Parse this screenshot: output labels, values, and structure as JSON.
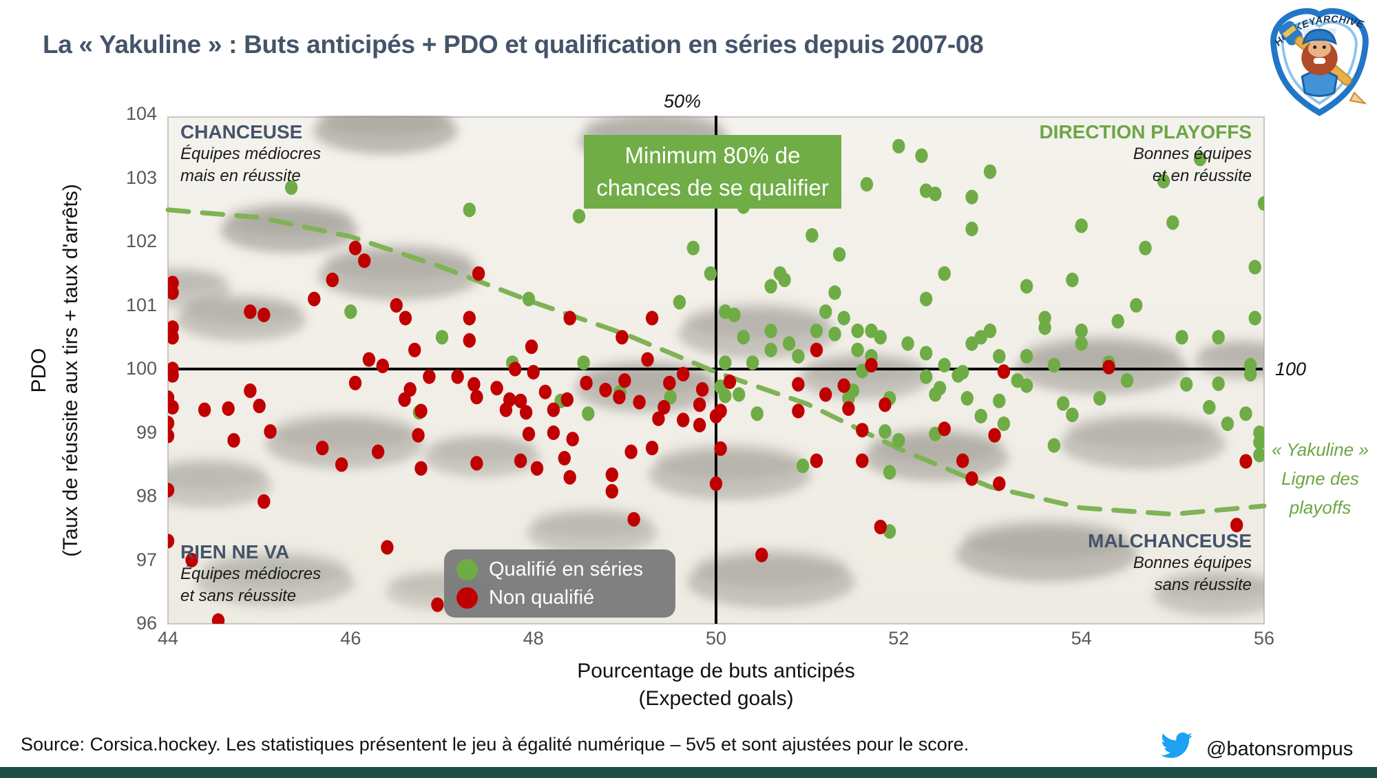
{
  "title": "La « Yakuline » : Buts anticipés + PDO et qualification en séries depuis 2007-08",
  "logo": {
    "text": "HOCKEYARCHIVES.INFO"
  },
  "chart_data": {
    "type": "scatter",
    "xlabel_line1": "Pourcentage de buts anticipés",
    "xlabel_line2": "(Expected goals)",
    "ylabel_line1": "PDO",
    "ylabel_line2": "(Taux de réussite aux tirs + taux d'arrêts)",
    "xlim": [
      44,
      56
    ],
    "ylim": [
      96,
      104
    ],
    "x_ticks": [
      44,
      46,
      48,
      50,
      52,
      54,
      56
    ],
    "y_ticks": [
      96,
      97,
      98,
      99,
      100,
      101,
      102,
      103,
      104
    ],
    "grid": false,
    "reference_lines": {
      "vertical_x": 50,
      "vertical_label": "50%",
      "horizontal_y": 100,
      "horizontal_label": "100"
    },
    "annotation_box": {
      "line1": "Minimum 80% de",
      "line2": "chances de se qualifier"
    },
    "quadrants": {
      "top_left": {
        "title": "CHANCEUSE",
        "line1": "Équipes médiocres",
        "line2": "mais en réussite"
      },
      "top_right": {
        "title": "DIRECTION PLAYOFFS",
        "line1": "Bonnes équipes",
        "line2": "et en réussite"
      },
      "bottom_left": {
        "title": "RIEN NE VA",
        "line1": "Équipes médiocres",
        "line2": "et sans réussite"
      },
      "bottom_right": {
        "title": "MALCHANCEUSE",
        "line1": "Bonnes équipes",
        "line2": "sans réussite"
      }
    },
    "legend": {
      "items": [
        {
          "label": "Qualifié en séries",
          "color": "#6FAC46"
        },
        {
          "label": "Non qualifié",
          "color": "#C00000"
        }
      ]
    },
    "yakuline": {
      "label_line1": "« Yakuline »",
      "label_line2": "Ligne des",
      "label_line3": "playoffs",
      "color": "#7FB356",
      "points": [
        [
          44,
          102.5
        ],
        [
          45,
          102.38
        ],
        [
          46,
          102.08
        ],
        [
          47,
          101.6
        ],
        [
          48,
          101.05
        ],
        [
          49,
          100.55
        ],
        [
          50,
          99.95
        ],
        [
          51,
          99.45
        ],
        [
          52,
          98.75
        ],
        [
          53,
          98.15
        ],
        [
          54,
          97.82
        ],
        [
          55,
          97.72
        ],
        [
          56,
          97.85
        ]
      ]
    },
    "series": [
      {
        "name": "Qualifié en séries",
        "color": "#6FAC46",
        "points": [
          [
            45.35,
            102.85
          ],
          [
            47.3,
            102.5
          ],
          [
            48.5,
            102.4
          ],
          [
            49.75,
            101.9
          ],
          [
            49.94,
            101.5
          ],
          [
            49.6,
            101.05
          ],
          [
            47.95,
            101.1
          ],
          [
            46.0,
            100.9
          ],
          [
            47.0,
            100.5
          ],
          [
            47.77,
            100.1
          ],
          [
            48.55,
            100.1
          ],
          [
            46.75,
            99.32
          ],
          [
            48.3,
            99.5
          ],
          [
            48.95,
            99.64
          ],
          [
            49.5,
            99.56
          ],
          [
            48.6,
            99.3
          ],
          [
            50.3,
            102.55
          ],
          [
            51.65,
            102.9
          ],
          [
            52.0,
            103.5
          ],
          [
            52.25,
            103.35
          ],
          [
            53.0,
            103.1
          ],
          [
            55.3,
            103.3
          ],
          [
            52.3,
            102.8
          ],
          [
            52.4,
            102.75
          ],
          [
            52.8,
            102.7
          ],
          [
            54.9,
            102.95
          ],
          [
            55.0,
            102.3
          ],
          [
            56.0,
            102.6
          ],
          [
            54.0,
            102.25
          ],
          [
            52.8,
            102.2
          ],
          [
            51.05,
            102.1
          ],
          [
            54.7,
            101.9
          ],
          [
            51.35,
            101.8
          ],
          [
            50.7,
            101.5
          ],
          [
            50.75,
            101.4
          ],
          [
            52.5,
            101.5
          ],
          [
            50.6,
            101.3
          ],
          [
            51.3,
            101.2
          ],
          [
            53.4,
            101.3
          ],
          [
            53.9,
            101.4
          ],
          [
            55.9,
            101.6
          ],
          [
            54.6,
            101.0
          ],
          [
            52.3,
            101.1
          ],
          [
            50.1,
            100.9
          ],
          [
            50.2,
            100.85
          ],
          [
            51.2,
            100.9
          ],
          [
            51.4,
            100.8
          ],
          [
            53.6,
            100.8
          ],
          [
            54.4,
            100.75
          ],
          [
            55.9,
            100.8
          ],
          [
            53.6,
            100.65
          ],
          [
            54.0,
            100.6
          ],
          [
            50.6,
            100.6
          ],
          [
            51.1,
            100.6
          ],
          [
            51.3,
            100.55
          ],
          [
            51.55,
            100.6
          ],
          [
            51.7,
            100.6
          ],
          [
            50.3,
            100.5
          ],
          [
            50.8,
            100.4
          ],
          [
            51.8,
            100.5
          ],
          [
            52.1,
            100.4
          ],
          [
            52.8,
            100.4
          ],
          [
            52.9,
            100.5
          ],
          [
            53.0,
            100.6
          ],
          [
            54.0,
            100.4
          ],
          [
            55.1,
            100.5
          ],
          [
            55.5,
            100.5
          ],
          [
            50.6,
            100.3
          ],
          [
            50.9,
            100.2
          ],
          [
            51.55,
            100.3
          ],
          [
            51.7,
            100.2
          ],
          [
            52.3,
            100.25
          ],
          [
            53.1,
            100.2
          ],
          [
            53.4,
            100.2
          ],
          [
            50.1,
            100.1
          ],
          [
            50.4,
            100.1
          ],
          [
            52.5,
            100.06
          ],
          [
            53.7,
            100.06
          ],
          [
            54.3,
            100.1
          ],
          [
            55.85,
            100.06
          ],
          [
            51.6,
            99.97
          ],
          [
            52.7,
            99.95
          ],
          [
            50.05,
            99.72
          ],
          [
            50.25,
            99.6
          ],
          [
            50.1,
            99.58
          ],
          [
            52.3,
            99.88
          ],
          [
            52.65,
            99.9
          ],
          [
            52.45,
            99.7
          ],
          [
            52.4,
            99.6
          ],
          [
            52.75,
            99.54
          ],
          [
            51.9,
            99.54
          ],
          [
            53.1,
            99.5
          ],
          [
            53.8,
            99.46
          ],
          [
            54.2,
            99.54
          ],
          [
            53.4,
            99.74
          ],
          [
            53.3,
            99.82
          ],
          [
            54.5,
            99.82
          ],
          [
            55.15,
            99.76
          ],
          [
            55.5,
            99.77
          ],
          [
            55.85,
            99.92
          ],
          [
            53.9,
            99.28
          ],
          [
            52.9,
            99.26
          ],
          [
            53.15,
            99.14
          ],
          [
            55.4,
            99.4
          ],
          [
            55.8,
            99.3
          ],
          [
            55.6,
            99.14
          ],
          [
            51.85,
            99.02
          ],
          [
            52.4,
            98.98
          ],
          [
            53.7,
            98.8
          ],
          [
            50.95,
            98.48
          ],
          [
            51.9,
            98.38
          ],
          [
            52.0,
            98.88
          ],
          [
            51.5,
            99.66
          ],
          [
            51.45,
            99.54
          ],
          [
            50.45,
            99.3
          ],
          [
            55.95,
            99.0
          ],
          [
            55.95,
            98.85
          ],
          [
            55.95,
            98.65
          ],
          [
            51.9,
            97.45
          ]
        ]
      },
      {
        "name": "Non qualifié",
        "color": "#C00000",
        "points": [
          [
            44.05,
            101.35
          ],
          [
            44.05,
            101.2
          ],
          [
            44.05,
            100.65
          ],
          [
            44.05,
            100.5
          ],
          [
            44.05,
            100.0
          ],
          [
            44.05,
            99.9
          ],
          [
            44.0,
            99.55
          ],
          [
            44.05,
            99.4
          ],
          [
            44.0,
            99.15
          ],
          [
            44.0,
            98.95
          ],
          [
            44.0,
            98.1
          ],
          [
            44.0,
            97.3
          ],
          [
            44.26,
            97.0
          ],
          [
            44.55,
            96.05
          ],
          [
            44.9,
            99.66
          ],
          [
            44.4,
            99.36
          ],
          [
            44.66,
            99.38
          ],
          [
            45.0,
            99.42
          ],
          [
            45.12,
            99.02
          ],
          [
            44.72,
            98.88
          ],
          [
            45.69,
            98.76
          ],
          [
            45.05,
            97.92
          ],
          [
            45.05,
            100.85
          ],
          [
            44.9,
            100.9
          ],
          [
            45.6,
            101.1
          ],
          [
            45.8,
            101.4
          ],
          [
            46.05,
            101.9
          ],
          [
            46.15,
            101.7
          ],
          [
            46.5,
            101.0
          ],
          [
            46.6,
            100.8
          ],
          [
            45.9,
            98.5
          ],
          [
            46.3,
            98.7
          ],
          [
            46.4,
            97.2
          ],
          [
            46.95,
            96.3
          ],
          [
            46.65,
            99.68
          ],
          [
            46.59,
            99.52
          ],
          [
            46.74,
            98.96
          ],
          [
            46.77,
            98.44
          ],
          [
            46.77,
            99.34
          ],
          [
            46.2,
            100.15
          ],
          [
            46.35,
            100.05
          ],
          [
            46.7,
            100.3
          ],
          [
            47.4,
            101.5
          ],
          [
            47.3,
            100.8
          ],
          [
            47.3,
            100.45
          ],
          [
            47.98,
            100.35
          ],
          [
            48.4,
            100.8
          ],
          [
            48.97,
            100.5
          ],
          [
            49.3,
            100.8
          ],
          [
            49.25,
            100.15
          ],
          [
            47.8,
            100.0
          ],
          [
            48.0,
            99.95
          ],
          [
            46.86,
            99.88
          ],
          [
            47.17,
            99.88
          ],
          [
            47.35,
            99.76
          ],
          [
            47.38,
            99.56
          ],
          [
            47.6,
            99.7
          ],
          [
            47.74,
            99.52
          ],
          [
            47.7,
            99.36
          ],
          [
            47.86,
            99.5
          ],
          [
            47.92,
            99.32
          ],
          [
            48.13,
            99.64
          ],
          [
            48.22,
            99.36
          ],
          [
            48.37,
            99.52
          ],
          [
            48.58,
            99.78
          ],
          [
            48.79,
            99.67
          ],
          [
            48.94,
            99.56
          ],
          [
            49.0,
            99.82
          ],
          [
            49.16,
            99.48
          ],
          [
            46.05,
            99.78
          ],
          [
            47.95,
            98.98
          ],
          [
            48.22,
            99.0
          ],
          [
            48.43,
            98.9
          ],
          [
            47.38,
            98.52
          ],
          [
            47.86,
            98.56
          ],
          [
            48.04,
            98.44
          ],
          [
            48.34,
            98.6
          ],
          [
            48.4,
            98.3
          ],
          [
            48.86,
            98.34
          ],
          [
            48.86,
            98.08
          ],
          [
            49.07,
            98.7
          ],
          [
            49.3,
            98.76
          ],
          [
            49.1,
            97.64
          ],
          [
            49.49,
            99.78
          ],
          [
            49.64,
            99.92
          ],
          [
            49.85,
            99.68
          ],
          [
            49.82,
            99.44
          ],
          [
            49.43,
            99.4
          ],
          [
            49.37,
            99.22
          ],
          [
            49.64,
            99.2
          ],
          [
            49.82,
            99.12
          ],
          [
            50.0,
            99.26
          ],
          [
            50.05,
            98.75
          ],
          [
            50.0,
            98.2
          ],
          [
            50.9,
            99.76
          ],
          [
            51.2,
            99.6
          ],
          [
            51.4,
            99.74
          ],
          [
            50.9,
            99.34
          ],
          [
            51.45,
            99.38
          ],
          [
            51.85,
            99.44
          ],
          [
            51.6,
            99.04
          ],
          [
            52.5,
            99.06
          ],
          [
            53.05,
            98.96
          ],
          [
            51.1,
            98.56
          ],
          [
            51.6,
            98.56
          ],
          [
            52.7,
            98.56
          ],
          [
            52.8,
            98.28
          ],
          [
            53.1,
            98.2
          ],
          [
            50.5,
            97.08
          ],
          [
            55.7,
            97.55
          ],
          [
            51.8,
            97.52
          ],
          [
            50.15,
            99.8
          ],
          [
            50.05,
            99.34
          ],
          [
            51.1,
            100.3
          ],
          [
            51.7,
            100.06
          ],
          [
            53.15,
            99.96
          ],
          [
            54.3,
            100.03
          ],
          [
            55.8,
            98.55
          ]
        ]
      }
    ]
  },
  "colors": {
    "qualified": "#6FAC46",
    "not_qualified": "#C00000",
    "annotation_green": "#70AD47",
    "navy": "#44546A",
    "footer_bar": "#1F4E45",
    "twitter_blue": "#1DA1F2"
  },
  "footer": {
    "source": "Source: Corsica.hockey. Les statistiques présentent le jeu à égalité numérique – 5v5 et sont ajustées pour le score.",
    "twitter_handle": "@batonsrompus"
  }
}
